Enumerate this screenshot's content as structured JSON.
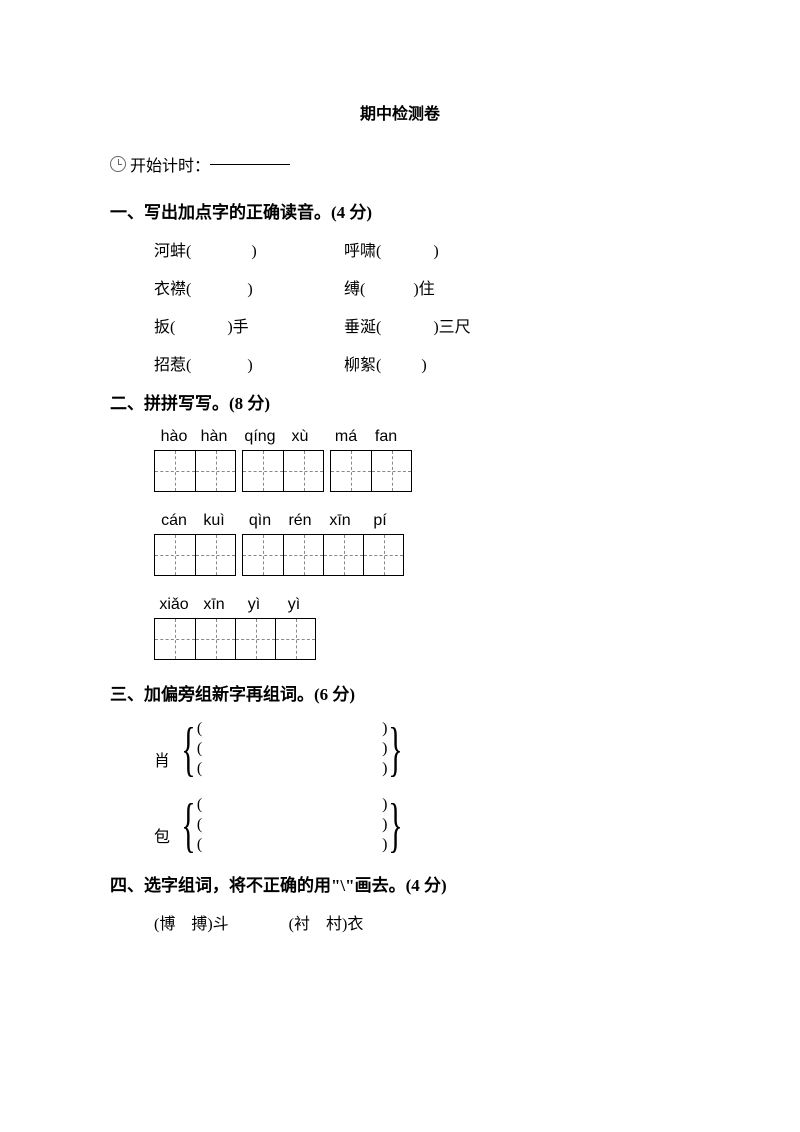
{
  "title": "期中检测卷",
  "timer": {
    "label": "开始计时："
  },
  "q1": {
    "heading": "一、写出加点字的正确读音。(4 分)",
    "rows": [
      {
        "a_pre": "河蚌(",
        "a_post": ")",
        "b_pre": "呼啸(",
        "b_post": ")"
      },
      {
        "a_pre": "衣襟(",
        "a_post": ")",
        "b_pre": "缚(",
        "b_post": ")住"
      },
      {
        "a_pre": "扳(",
        "a_post": ")手",
        "b_pre": "垂涎(",
        "b_post": ")三尺"
      },
      {
        "a_pre": "招惹(",
        "a_post": ")",
        "b_pre": "柳絮(",
        "b_post": ")"
      }
    ],
    "blank_width": {
      "r0a": 60,
      "r0b": 52,
      "r1a": 56,
      "r1b": 48,
      "r2a": 52,
      "r2b": 52,
      "r3a": 56,
      "r3b": 40
    }
  },
  "q2": {
    "heading": "二、拼拼写写。(8 分)",
    "lines": [
      {
        "groups": [
          [
            "hào",
            "hàn"
          ],
          [
            "qíng",
            "xù"
          ],
          [
            "má",
            "fan"
          ]
        ]
      },
      {
        "groups": [
          [
            "cán",
            "kuì"
          ],
          [
            "qìn",
            "rén",
            "xīn",
            "pí"
          ]
        ]
      },
      {
        "groups": [
          [
            "xiǎo",
            "xīn",
            "yì",
            "yì"
          ]
        ]
      }
    ]
  },
  "q3": {
    "heading": "三、加偏旁组新字再组词。(6 分)",
    "items": [
      {
        "char": "肖"
      },
      {
        "char": "包"
      }
    ]
  },
  "q4": {
    "heading": "四、选字组词，将不正确的用\"\\\"画去。(4 分)",
    "items": [
      {
        "left": "(博　搏)斗",
        "right": "(衬　村)衣"
      }
    ]
  }
}
